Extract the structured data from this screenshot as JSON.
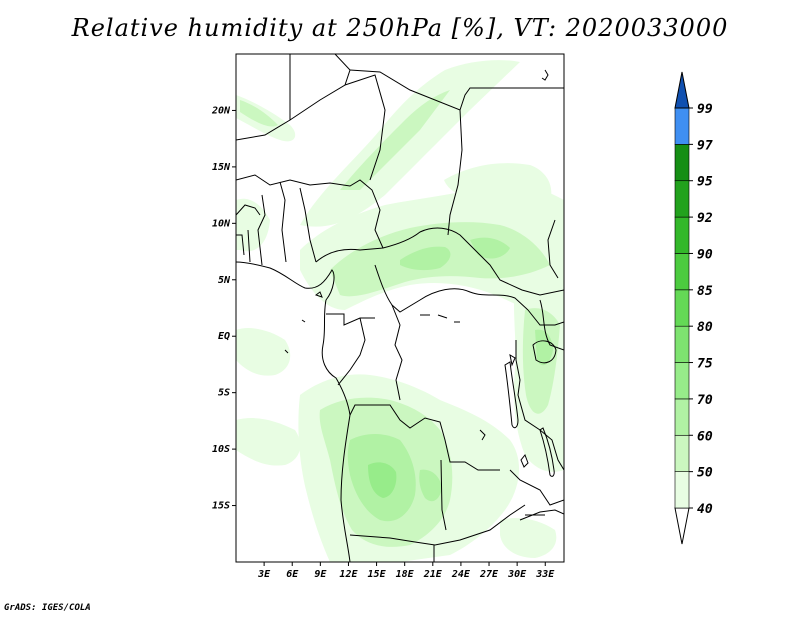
{
  "title": "Relative humidity at 250hPa [%], VT: 2020033000",
  "footer": "GrADS: IGES/COLA",
  "map": {
    "lon_range": [
      0,
      35
    ],
    "lat_range": [
      -20,
      25
    ],
    "lat_ticks": [
      {
        "value": 20,
        "label": "20N"
      },
      {
        "value": 15,
        "label": "15N"
      },
      {
        "value": 10,
        "label": "10N"
      },
      {
        "value": 5,
        "label": "5N"
      },
      {
        "value": 0,
        "label": "EQ"
      },
      {
        "value": -5,
        "label": "5S"
      },
      {
        "value": -10,
        "label": "10S"
      },
      {
        "value": -15,
        "label": "15S"
      }
    ],
    "lon_ticks": [
      {
        "value": 3,
        "label": "3E"
      },
      {
        "value": 6,
        "label": "6E"
      },
      {
        "value": 9,
        "label": "9E"
      },
      {
        "value": 12,
        "label": "12E"
      },
      {
        "value": 15,
        "label": "15E"
      },
      {
        "value": 18,
        "label": "18E"
      },
      {
        "value": 21,
        "label": "21E"
      },
      {
        "value": 24,
        "label": "24E"
      },
      {
        "value": 27,
        "label": "27E"
      },
      {
        "value": 30,
        "label": "30E"
      },
      {
        "value": 33,
        "label": "33E"
      }
    ]
  },
  "colorbar": {
    "levels": [
      {
        "label": "40",
        "color": "#e8fde3"
      },
      {
        "label": "50",
        "color": "#cbf7c0"
      },
      {
        "label": "60",
        "color": "#b1f2a4"
      },
      {
        "label": "70",
        "color": "#97ec8a"
      },
      {
        "label": "75",
        "color": "#7ee370"
      },
      {
        "label": "80",
        "color": "#64d956"
      },
      {
        "label": "85",
        "color": "#4ccb3f"
      },
      {
        "label": "90",
        "color": "#33b82a"
      },
      {
        "label": "92",
        "color": "#22a21d"
      },
      {
        "label": "95",
        "color": "#158e14"
      },
      {
        "label": "97",
        "color": "#3f8ff2"
      },
      {
        "label": "99",
        "color": "#1e66d2"
      }
    ],
    "top_color": "#1050b0"
  }
}
